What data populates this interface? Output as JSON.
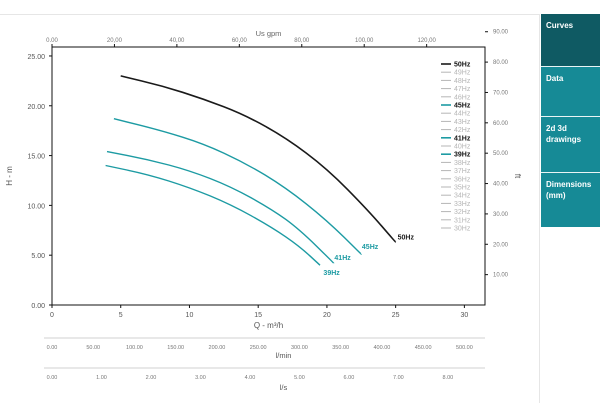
{
  "sidebar": {
    "tabs": [
      {
        "label": "Curves",
        "active": true
      },
      {
        "label": "Data",
        "active": false
      },
      {
        "label": "2d 3d drawings",
        "active": false
      },
      {
        "label": "Dimensions (mm)",
        "active": false
      }
    ]
  },
  "colors": {
    "teal": "#1d9ba3",
    "black": "#1a1a1a",
    "gray_legend": "#b5b5b5",
    "sidebar_active": "#0f5a63",
    "sidebar_normal": "#168a96"
  },
  "chart_data": {
    "type": "line",
    "ylabel": "H - m",
    "xlabel": "Q - m³/h",
    "ylabel_right": "ft",
    "x_ticks": [
      "0",
      "5",
      "10",
      "15",
      "20",
      "25",
      "30"
    ],
    "xlim": [
      0,
      31.5
    ],
    "y_ticks": [
      "0.00",
      "5.00",
      "10.00",
      "15.00",
      "20.00",
      "25.00"
    ],
    "ylim": [
      0,
      25.9
    ],
    "right_ticks": [
      "10.00",
      "20.00",
      "30.00",
      "40.00",
      "50.00",
      "60.00",
      "70.00",
      "80.00",
      "90.00"
    ],
    "top_axis": {
      "label": "Us gpm",
      "ticks": [
        "0.00",
        "20,00",
        "40,00",
        "60,00",
        "80,00",
        "100,00",
        "120,00"
      ]
    },
    "bottom_axes": [
      {
        "label": "l/min",
        "ticks": [
          "0.00",
          "50.00",
          "100.00",
          "150.00",
          "200.00",
          "250.00",
          "300.00",
          "350.00",
          "400.00",
          "450.00",
          "500.00"
        ]
      },
      {
        "label": "l/s",
        "ticks": [
          "0.00",
          "1.00",
          "2.00",
          "3.00",
          "4.00",
          "5.00",
          "6.00",
          "7.00",
          "8.00"
        ]
      }
    ],
    "series": [
      {
        "name": "50Hz",
        "color": "#1a1a1a",
        "label_pos": [
          25,
          6.9
        ],
        "x": [
          5,
          8,
          11,
          14,
          17,
          20,
          23,
          25
        ],
        "y": [
          23.0,
          22.0,
          20.7,
          19.1,
          16.8,
          13.7,
          9.5,
          6.3
        ]
      },
      {
        "name": "45Hz",
        "color": "#1d9ba3",
        "label_pos": [
          22.4,
          5.9
        ],
        "x": [
          4.5,
          8,
          11,
          14,
          17,
          20,
          22.5
        ],
        "y": [
          18.7,
          17.5,
          16.2,
          14.3,
          11.8,
          8.5,
          5.1
        ]
      },
      {
        "name": "41Hz",
        "color": "#1d9ba3",
        "label_pos": [
          20.4,
          4.8
        ],
        "x": [
          4,
          7,
          10,
          13,
          16,
          18,
          20.5
        ],
        "y": [
          15.4,
          14.6,
          13.5,
          11.9,
          9.6,
          7.6,
          4.2
        ]
      },
      {
        "name": "39Hz",
        "color": "#1d9ba3",
        "label_pos": [
          19.6,
          3.3
        ],
        "x": [
          3.9,
          7,
          10,
          13,
          16,
          18,
          19.5
        ],
        "y": [
          14.0,
          13.1,
          11.8,
          10.1,
          7.8,
          5.9,
          4.0
        ]
      }
    ],
    "legend": {
      "position": "top-right",
      "entries": [
        {
          "label": "50Hz",
          "style": "black"
        },
        {
          "label": "49Hz",
          "style": "gray"
        },
        {
          "label": "48Hz",
          "style": "gray"
        },
        {
          "label": "47Hz",
          "style": "gray"
        },
        {
          "label": "46Hz",
          "style": "gray"
        },
        {
          "label": "45Hz",
          "style": "teal"
        },
        {
          "label": "44Hz",
          "style": "gray"
        },
        {
          "label": "43Hz",
          "style": "gray"
        },
        {
          "label": "42Hz",
          "style": "gray"
        },
        {
          "label": "41Hz",
          "style": "teal"
        },
        {
          "label": "40Hz",
          "style": "gray"
        },
        {
          "label": "39Hz",
          "style": "teal"
        },
        {
          "label": "38Hz",
          "style": "gray"
        },
        {
          "label": "37Hz",
          "style": "gray"
        },
        {
          "label": "36Hz",
          "style": "gray"
        },
        {
          "label": "35Hz",
          "style": "gray"
        },
        {
          "label": "34Hz",
          "style": "gray"
        },
        {
          "label": "33Hz",
          "style": "gray"
        },
        {
          "label": "32Hz",
          "style": "gray"
        },
        {
          "label": "31Hz",
          "style": "gray"
        },
        {
          "label": "30Hz",
          "style": "gray"
        }
      ]
    }
  }
}
